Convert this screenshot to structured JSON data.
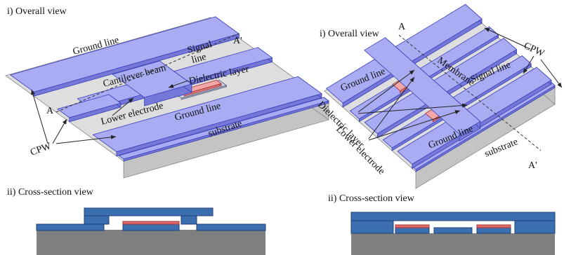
{
  "left_panel": {
    "overview_title": "i) Overall view",
    "labels": {
      "ground_line_top": "Ground line",
      "cantilever_beam": "Cantilever beam",
      "signal_line": [
        "Signal",
        "line"
      ],
      "a_prime": "A'",
      "dielectric_layer": "Dielectric layer",
      "a": "A",
      "lower_electrode": "Lower electrode",
      "ground_line_bottom": "Ground line",
      "cpw": "CPW",
      "substrate": "substrate"
    },
    "cross_section_title": "ii) Cross-section view"
  },
  "right_panel": {
    "overview_title": "i) Overall view",
    "labels": {
      "a": "A",
      "cpw": "CPW",
      "membrane": "Membrane",
      "signal_line": "Signal line",
      "ground_line_top": "Ground line",
      "dielectric_layer": "Dielectric layer",
      "lower_electrode": "Lower electrode",
      "ground_line_bottom": "Ground line",
      "substrate": "substrate",
      "a_prime": "A'"
    },
    "cross_section_title": "ii) Cross-section view"
  }
}
